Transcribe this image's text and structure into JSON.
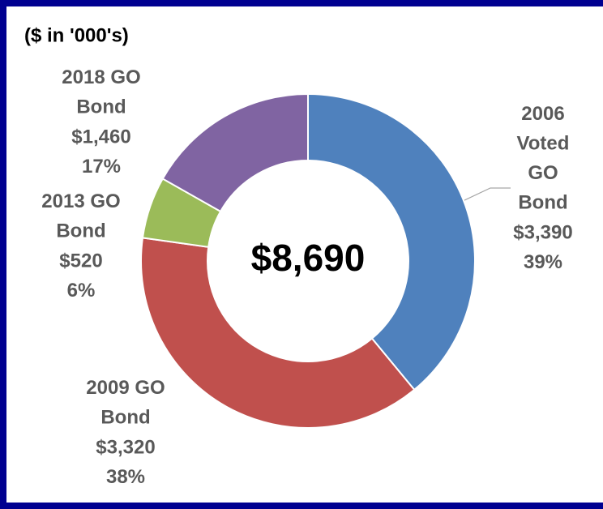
{
  "chart_data": {
    "type": "donut",
    "subtitle": "($ in '000's)",
    "center_label": "$8,690",
    "categories": [
      "2006 Voted GO Bond",
      "2009 GO Bond",
      "2013 GO Bond",
      "2018 GO Bond"
    ],
    "values": [
      3390,
      3320,
      520,
      1460
    ],
    "value_labels": [
      "$3,390",
      "$3,320",
      "$520",
      "$1,460"
    ],
    "percentages": [
      39,
      38,
      6,
      17
    ],
    "percentage_labels": [
      "39%",
      "38%",
      "6%",
      "17%"
    ],
    "colors": [
      "#4f81bd",
      "#c0504d",
      "#9bbb59",
      "#8064a2"
    ]
  }
}
